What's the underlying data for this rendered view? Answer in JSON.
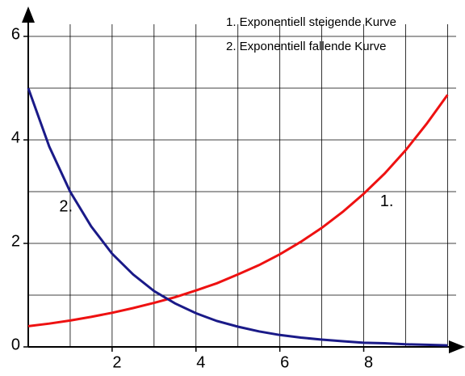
{
  "chart_data": {
    "type": "line",
    "x": [
      0,
      0.5,
      1,
      1.5,
      2,
      2.5,
      3,
      3.5,
      4,
      4.5,
      5,
      5.5,
      6,
      6.5,
      7,
      7.5,
      8,
      8.5,
      9,
      9.5,
      10
    ],
    "series": [
      {
        "name": "1.  Exponentiell steigende Kurve",
        "color": "#ee1111",
        "values": [
          0.4,
          0.45,
          0.51,
          0.58,
          0.66,
          0.75,
          0.85,
          0.96,
          1.09,
          1.23,
          1.4,
          1.58,
          1.79,
          2.03,
          2.3,
          2.61,
          2.96,
          3.35,
          3.8,
          4.31,
          4.87
        ]
      },
      {
        "name": "2.  Exponentiell fallende Kurve",
        "color": "#1a1a88",
        "values": [
          5.0,
          3.87,
          3.0,
          2.33,
          1.8,
          1.4,
          1.08,
          0.84,
          0.65,
          0.5,
          0.39,
          0.3,
          0.23,
          0.18,
          0.14,
          0.11,
          0.08,
          0.07,
          0.05,
          0.04,
          0.03
        ]
      }
    ],
    "annotations": [
      {
        "text": "1.",
        "x": 8.55,
        "y": 2.8
      },
      {
        "text": "2.",
        "x": 0.9,
        "y": 2.7
      }
    ],
    "xlim": [
      0,
      10.3
    ],
    "ylim": [
      0,
      6.5
    ],
    "xticks": [
      2,
      4,
      6,
      8
    ],
    "yticks": [
      0,
      2,
      4,
      6
    ],
    "xgrid": [
      1,
      2,
      3,
      4,
      5,
      6,
      7,
      8,
      9,
      10
    ],
    "ygrid": [
      1,
      2,
      3,
      4,
      5,
      6
    ],
    "grid": true,
    "legend": "upper right"
  }
}
